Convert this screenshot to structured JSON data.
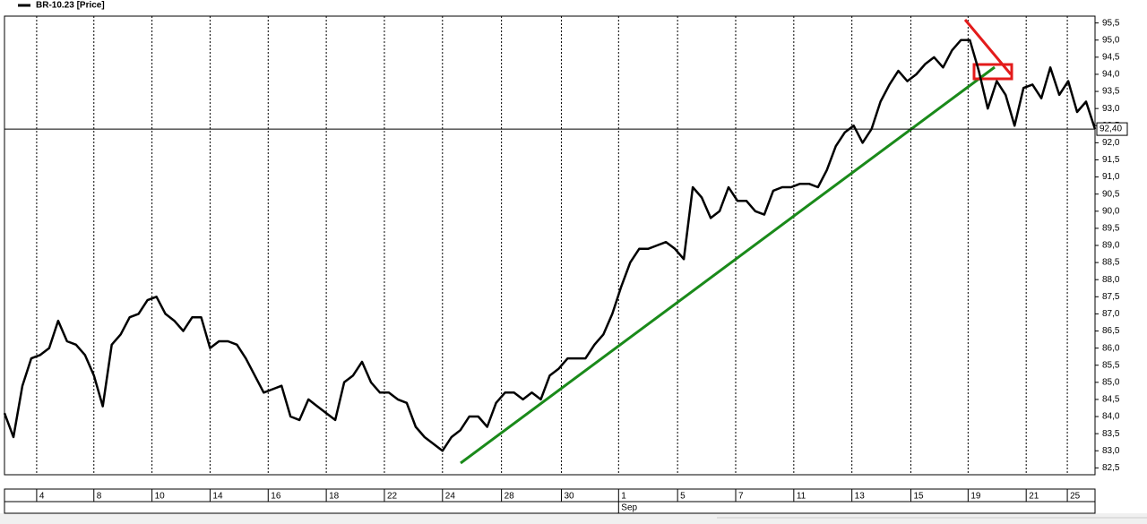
{
  "chart_data": {
    "type": "line",
    "legend": "BR-10.23 [Price]",
    "series": [
      {
        "name": "BR-10.23 [Price]",
        "color": "#000000",
        "values": [
          84.1,
          83.4,
          84.9,
          85.7,
          85.8,
          86.0,
          86.8,
          86.2,
          86.1,
          85.8,
          85.2,
          84.3,
          86.1,
          86.4,
          86.9,
          87.0,
          87.4,
          87.5,
          87.0,
          86.8,
          86.5,
          86.9,
          86.9,
          86.0,
          86.2,
          86.2,
          86.1,
          85.7,
          85.2,
          84.7,
          84.8,
          84.9,
          84.0,
          83.9,
          84.5,
          84.3,
          84.1,
          83.9,
          85.0,
          85.2,
          85.6,
          85.0,
          84.7,
          84.7,
          84.5,
          84.4,
          83.7,
          83.4,
          83.2,
          83.0,
          83.4,
          83.6,
          84.0,
          84.0,
          83.7,
          84.4,
          84.7,
          84.7,
          84.5,
          84.7,
          84.5,
          85.2,
          85.4,
          85.7,
          85.7,
          85.7,
          86.1,
          86.4,
          87.0,
          87.8,
          88.5,
          88.9,
          88.9,
          89.0,
          89.1,
          88.9,
          88.6,
          90.7,
          90.4,
          89.8,
          90.0,
          90.7,
          90.3,
          90.3,
          90.0,
          89.9,
          90.6,
          90.7,
          90.7,
          90.8,
          90.8,
          90.7,
          91.2,
          91.9,
          92.3,
          92.5,
          92.0,
          92.4,
          93.2,
          93.7,
          94.1,
          93.8,
          94.0,
          94.3,
          94.5,
          94.2,
          94.7,
          95.0,
          95.0,
          94.1,
          93.0,
          93.8,
          93.4,
          92.5,
          93.6,
          93.7,
          93.3,
          94.2,
          93.4,
          93.8,
          92.9,
          93.2,
          92.4
        ]
      }
    ],
    "last_price": {
      "value": 92.4,
      "label": "92,40"
    },
    "xlim": [
      0,
      122
    ],
    "xticks": [
      {
        "value": 3.6,
        "label": "4"
      },
      {
        "value": 10.0,
        "label": "8"
      },
      {
        "value": 16.5,
        "label": "10"
      },
      {
        "value": 23.0,
        "label": "14"
      },
      {
        "value": 29.5,
        "label": "16"
      },
      {
        "value": 36.0,
        "label": "18"
      },
      {
        "value": 42.5,
        "label": "22"
      },
      {
        "value": 49.0,
        "label": "24"
      },
      {
        "value": 55.6,
        "label": "28"
      },
      {
        "value": 62.3,
        "label": "30"
      },
      {
        "value": 68.7,
        "label": "1"
      },
      {
        "value": 75.3,
        "label": "5"
      },
      {
        "value": 81.8,
        "label": "7"
      },
      {
        "value": 88.3,
        "label": "11"
      },
      {
        "value": 94.8,
        "label": "13"
      },
      {
        "value": 101.4,
        "label": "15"
      },
      {
        "value": 107.8,
        "label": "19"
      },
      {
        "value": 114.3,
        "label": "21"
      },
      {
        "value": 118.9,
        "label": "25"
      }
    ],
    "month_label": {
      "value": 68.7,
      "label": "Sep"
    },
    "ylim": [
      82.3,
      95.7
    ],
    "yticks": [
      {
        "value": 82.5,
        "label": "82,5"
      },
      {
        "value": 83.0,
        "label": "83,0"
      },
      {
        "value": 83.5,
        "label": "83,5"
      },
      {
        "value": 84.0,
        "label": "84,0"
      },
      {
        "value": 84.5,
        "label": "84,5"
      },
      {
        "value": 85.0,
        "label": "85,0"
      },
      {
        "value": 85.5,
        "label": "85,5"
      },
      {
        "value": 86.0,
        "label": "86,0"
      },
      {
        "value": 86.5,
        "label": "86,5"
      },
      {
        "value": 87.0,
        "label": "87,0"
      },
      {
        "value": 87.5,
        "label": "87,5"
      },
      {
        "value": 88.0,
        "label": "88,0"
      },
      {
        "value": 88.5,
        "label": "88,5"
      },
      {
        "value": 89.0,
        "label": "89,0"
      },
      {
        "value": 89.5,
        "label": "89,5"
      },
      {
        "value": 90.0,
        "label": "90,0"
      },
      {
        "value": 90.5,
        "label": "90,5"
      },
      {
        "value": 91.0,
        "label": "91,0"
      },
      {
        "value": 91.5,
        "label": "91,5"
      },
      {
        "value": 92.0,
        "label": "92,0"
      },
      {
        "value": 92.5,
        "label": "92,5"
      },
      {
        "value": 93.0,
        "label": "93,0"
      },
      {
        "value": 93.5,
        "label": "93,5"
      },
      {
        "value": 94.0,
        "label": "94,0"
      },
      {
        "value": 94.5,
        "label": "94,5"
      },
      {
        "value": 95.0,
        "label": "95,0"
      },
      {
        "value": 95.5,
        "label": "95,5"
      }
    ],
    "grid": true
  }
}
